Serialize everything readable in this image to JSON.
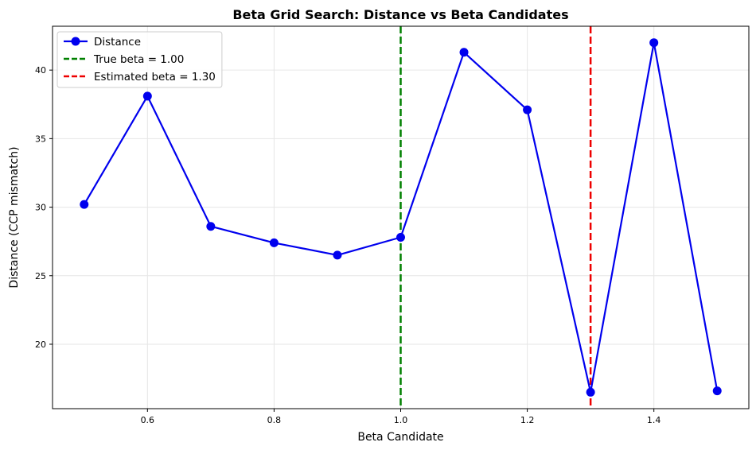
{
  "chart_data": {
    "type": "line",
    "title": "Beta Grid Search: Distance vs Beta Candidates",
    "xlabel": "Beta Candidate",
    "ylabel": "Distance (CCP mismatch)",
    "xlim": [
      0.45,
      1.55
    ],
    "ylim": [
      15.3,
      43.2
    ],
    "xticks": [
      0.6,
      0.8,
      1.0,
      1.2,
      1.4
    ],
    "xtick_labels": [
      "0.6",
      "0.8",
      "1.0",
      "1.2",
      "1.4"
    ],
    "yticks": [
      20,
      25,
      30,
      35,
      40
    ],
    "ytick_labels": [
      "20",
      "25",
      "30",
      "35",
      "40"
    ],
    "grid": true,
    "legend_position": "top-left",
    "series": [
      {
        "name": "Distance",
        "color": "#0000ee",
        "marker": "circle",
        "x": [
          0.5,
          0.6,
          0.7,
          0.8,
          0.9,
          1.0,
          1.1,
          1.2,
          1.3,
          1.4,
          1.5
        ],
        "y": [
          30.2,
          38.1,
          28.6,
          27.4,
          26.5,
          27.8,
          41.3,
          37.1,
          16.5,
          42.0,
          16.6
        ]
      }
    ],
    "vlines": [
      {
        "name": "True beta = 1.00",
        "x": 1.0,
        "color": "#008000",
        "style": "dashed"
      },
      {
        "name": "Estimated beta = 1.30",
        "x": 1.3,
        "color": "#ee0000",
        "style": "dashed"
      }
    ]
  }
}
